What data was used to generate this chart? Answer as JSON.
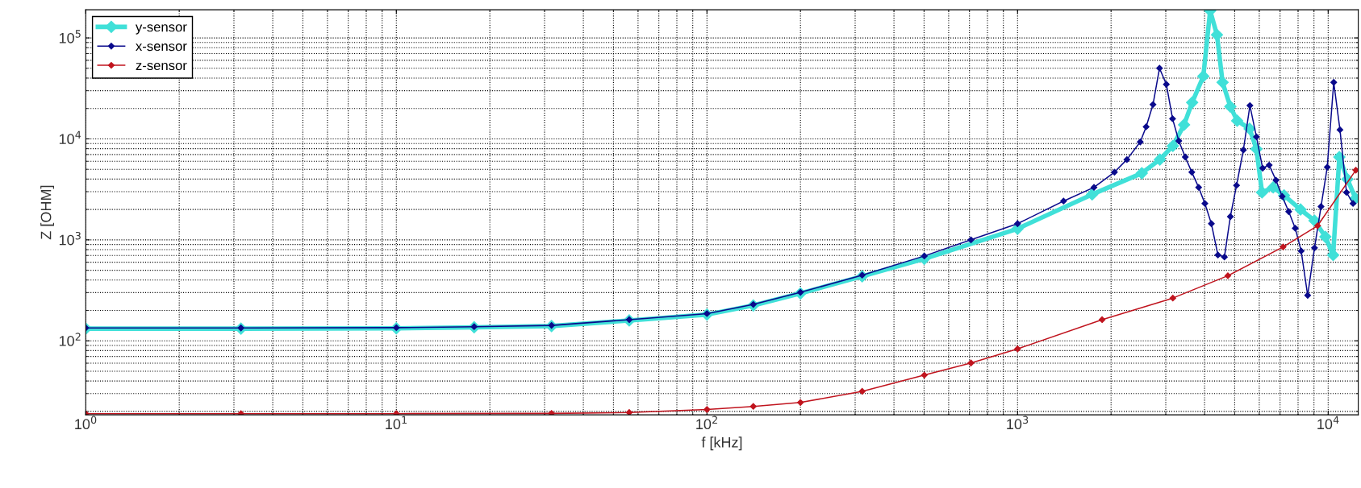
{
  "chart_data": {
    "type": "line",
    "xlabel": "f [kHz]",
    "ylabel": "Z [OHM]",
    "log": "xy",
    "grid": true,
    "legend": "top left",
    "marker": "diamond",
    "line_style": "solid",
    "xlim": [
      1,
      12500
    ],
    "ylim": [
      18.5,
      190000
    ],
    "xticks": [
      {
        "value": 1,
        "label": "10$^{0}$"
      },
      {
        "value": 10,
        "label": "10$^{1}$"
      },
      {
        "value": 100,
        "label": "10$^{2}$"
      },
      {
        "value": 1000,
        "label": "10$^{3}$"
      },
      {
        "value": 10000,
        "label": "10$^{4}$"
      }
    ],
    "yticks": [
      {
        "value": 100,
        "label": "10$^{2}$"
      },
      {
        "value": 1000,
        "label": "10$^{3}$"
      },
      {
        "value": 10000,
        "label": "10$^{4}$"
      },
      {
        "value": 100000,
        "label": "10$^{5}$"
      }
    ],
    "series": [
      {
        "name": "y-sensor",
        "color": "#40e0d8",
        "x": [
          1,
          3.16,
          10,
          17.8,
          31.6,
          56.2,
          100,
          141,
          200,
          316,
          501,
          1000,
          1738,
          2512,
          2871,
          3162,
          3436,
          3648,
          3963,
          4169,
          4385,
          4571,
          4842,
          5093,
          5585,
          5875,
          6124,
          6653,
          7211,
          8147,
          9036,
          9795,
          10375,
          10864,
          11535,
          12246
        ],
        "values": [
          132,
          132,
          133,
          136,
          140,
          159,
          182,
          224,
          295,
          435,
          650,
          1288,
          2818,
          4571,
          6237,
          8511,
          13804,
          22909,
          41687,
          186209,
          107152,
          36308,
          20893,
          15136,
          12589,
          7943,
          2951,
          3311,
          2754,
          1995,
          1549,
          1072,
          708,
          6607,
          3981,
          2570
        ]
      },
      {
        "name": "x-sensor",
        "color": "#0a0a8c",
        "x": [
          1,
          3.16,
          10,
          17.8,
          31.6,
          56.2,
          100,
          141,
          200,
          316,
          501,
          708,
          1000,
          1406,
          1762,
          2051,
          2249,
          2483,
          2594,
          2729,
          2864,
          3013,
          3155,
          3304,
          3467,
          3639,
          3828,
          4009,
          4207,
          4416,
          4634,
          4842,
          5070,
          5333,
          5598,
          5875,
          6152,
          6457,
          6792,
          7112,
          7464,
          7834,
          8185,
          8590,
          9036,
          9484,
          9931,
          10420,
          10914,
          11455,
          12023
        ],
        "values": [
          134,
          134,
          135,
          138,
          142,
          162,
          186,
          229,
          302,
          447,
          692,
          1000,
          1445,
          2421,
          3311,
          4677,
          6237,
          9333,
          13183,
          21878,
          50119,
          34674,
          15849,
          9550,
          6607,
          4677,
          3311,
          2291,
          1445,
          708,
          676,
          1698,
          3467,
          7762,
          21380,
          10471,
          5129,
          5495,
          3890,
          2692,
          1905,
          1303,
          776,
          282,
          832,
          2138,
          5248,
          36308,
          12303,
          2951,
          2291
        ]
      },
      {
        "name": "z-sensor",
        "color": "#c0141e",
        "x": [
          1,
          3.16,
          10,
          31.6,
          56.2,
          100,
          141,
          200,
          316,
          501,
          708,
          1000,
          1871,
          3162,
          4754,
          7161,
          9247,
          12274
        ],
        "values": [
          19,
          19,
          19,
          19.1,
          19.5,
          20.9,
          22.4,
          24.5,
          31.6,
          45.7,
          60.3,
          83.2,
          162,
          265,
          441,
          851,
          1380,
          4898
        ]
      }
    ]
  }
}
